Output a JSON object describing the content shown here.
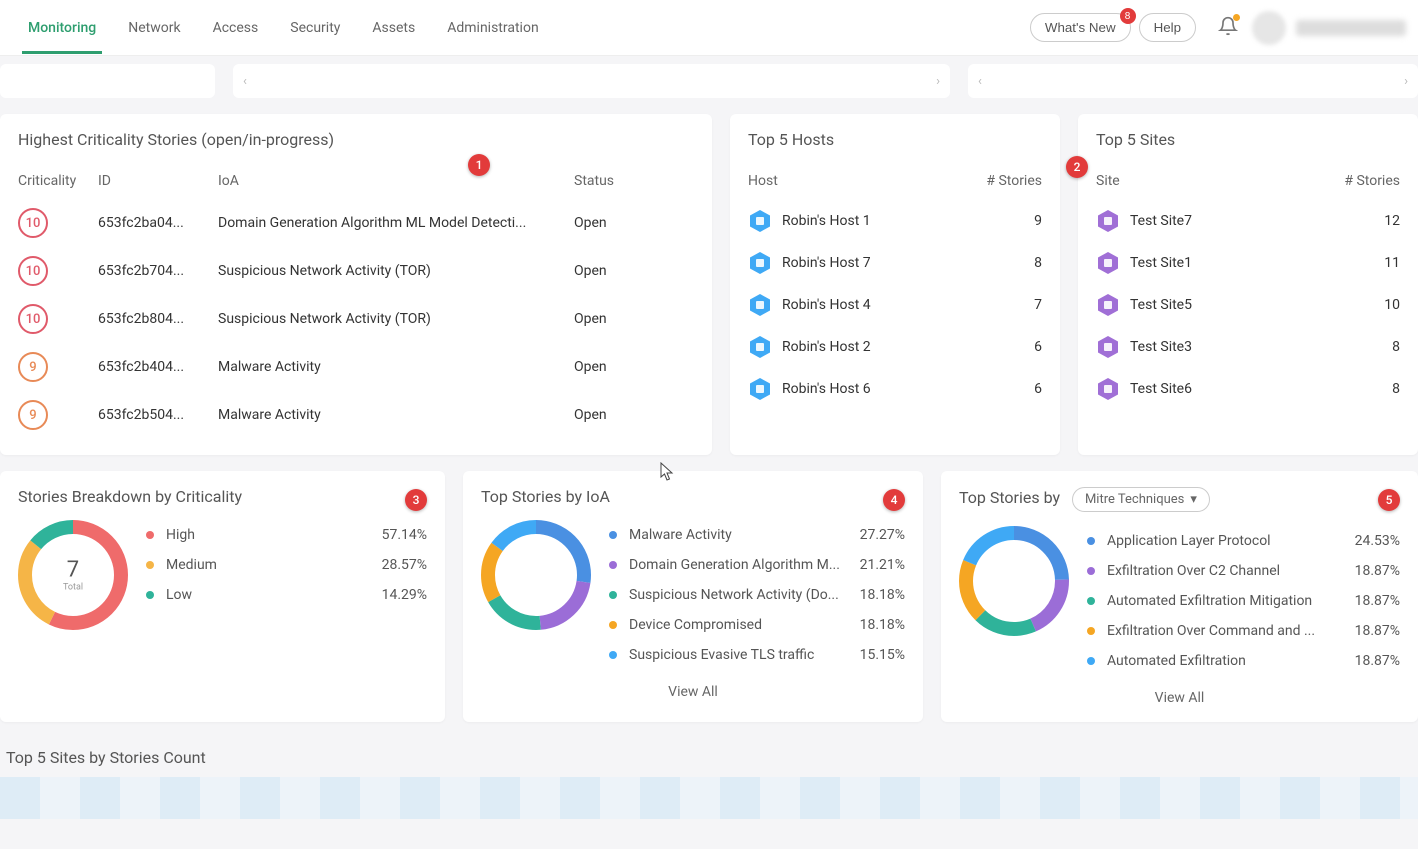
{
  "nav": {
    "tabs": [
      "Monitoring",
      "Network",
      "Access",
      "Security",
      "Assets",
      "Administration"
    ],
    "active_index": 0,
    "whats_new": "What's New",
    "whats_new_badge": "8",
    "help": "Help"
  },
  "highest_stories": {
    "title": "Highest Criticality Stories (open/in-progress)",
    "annotation": "1",
    "columns": {
      "criticality": "Criticality",
      "id": "ID",
      "ioa": "IoA",
      "status": "Status"
    },
    "rows": [
      {
        "crit": 10,
        "crit_color": "#e05a6a",
        "id": "653fc2ba04...",
        "ioa": "Domain Generation Algorithm ML Model Detecti...",
        "status": "Open"
      },
      {
        "crit": 10,
        "crit_color": "#e05a6a",
        "id": "653fc2b704...",
        "ioa": "Suspicious Network Activity (TOR)",
        "status": "Open"
      },
      {
        "crit": 10,
        "crit_color": "#e05a6a",
        "id": "653fc2b804...",
        "ioa": "Suspicious Network Activity (TOR)",
        "status": "Open"
      },
      {
        "crit": 9,
        "crit_color": "#e88a57",
        "id": "653fc2b404...",
        "ioa": "Malware Activity",
        "status": "Open"
      },
      {
        "crit": 9,
        "crit_color": "#e88a57",
        "id": "653fc2b504...",
        "ioa": "Malware Activity",
        "status": "Open"
      }
    ]
  },
  "top_hosts": {
    "title": "Top 5 Hosts",
    "columns": {
      "host": "Host",
      "count": "# Stories"
    },
    "rows": [
      {
        "host": "Robin's Host 1",
        "count": 9
      },
      {
        "host": "Robin's Host 7",
        "count": 8
      },
      {
        "host": "Robin's Host 4",
        "count": 7
      },
      {
        "host": "Robin's Host 2",
        "count": 6
      },
      {
        "host": "Robin's Host 6",
        "count": 6
      }
    ]
  },
  "top_sites": {
    "title": "Top 5 Sites",
    "annotation": "2",
    "columns": {
      "site": "Site",
      "count": "# Stories"
    },
    "rows": [
      {
        "site": "Test Site7",
        "count": 12
      },
      {
        "site": "Test Site1",
        "count": 11
      },
      {
        "site": "Test Site5",
        "count": 10
      },
      {
        "site": "Test Site3",
        "count": 8
      },
      {
        "site": "Test Site6",
        "count": 8
      }
    ]
  },
  "breakdown": {
    "title": "Stories Breakdown by Criticality",
    "annotation": "3",
    "total_value": "7",
    "total_label": "Total",
    "donut_bg": "#ffffff",
    "donut_thickness": 14,
    "items": [
      {
        "label": "High",
        "pct": "57.14%",
        "deg": 205.7,
        "color": "#ef6b6b"
      },
      {
        "label": "Medium",
        "pct": "28.57%",
        "deg": 102.9,
        "color": "#f5b547"
      },
      {
        "label": "Low",
        "pct": "14.29%",
        "deg": 51.4,
        "color": "#2fb39a"
      }
    ]
  },
  "top_ioa": {
    "title": "Top Stories by IoA",
    "annotation": "4",
    "view_all": "View All",
    "donut_thickness": 14,
    "items": [
      {
        "label": "Malware Activity",
        "pct": "27.27%",
        "deg": 98.2,
        "color": "#4a90e2"
      },
      {
        "label": "Domain Generation Algorithm M...",
        "pct": "21.21%",
        "deg": 76.4,
        "color": "#9b6dd7"
      },
      {
        "label": "Suspicious Network Activity (Do...",
        "pct": "18.18%",
        "deg": 65.4,
        "color": "#2fb39a"
      },
      {
        "label": "Device Compromised",
        "pct": "18.18%",
        "deg": 65.4,
        "color": "#f5a623"
      },
      {
        "label": "Suspicious Evasive TLS traffic",
        "pct": "15.15%",
        "deg": 54.5,
        "color": "#3fa9f5"
      }
    ]
  },
  "top_mitre": {
    "title_prefix": "Top Stories by",
    "dropdown_label": "Mitre Techniques",
    "annotation": "5",
    "view_all": "View All",
    "donut_thickness": 14,
    "items": [
      {
        "label": "Application Layer Protocol",
        "pct": "24.53%",
        "deg": 88.3,
        "color": "#4a90e2"
      },
      {
        "label": "Exfiltration Over C2 Channel",
        "pct": "18.87%",
        "deg": 67.9,
        "color": "#9b6dd7"
      },
      {
        "label": "Automated Exfiltration Mitigation",
        "pct": "18.87%",
        "deg": 67.9,
        "color": "#2fb39a"
      },
      {
        "label": "Exfiltration Over Command and ...",
        "pct": "18.87%",
        "deg": 67.9,
        "color": "#f5a623"
      },
      {
        "label": "Automated Exfiltration",
        "pct": "18.87%",
        "deg": 67.9,
        "color": "#3fa9f5"
      }
    ]
  },
  "bottom": {
    "title": "Top 5 Sites by Stories Count"
  }
}
